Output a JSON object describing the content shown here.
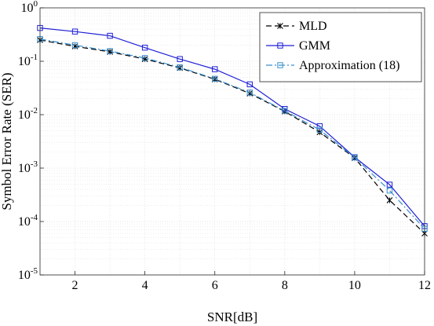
{
  "chart_data": {
    "type": "line",
    "xlabel": "SNR[dB]",
    "ylabel": "Symbol Error Rate (SER)",
    "xlim": [
      1,
      12
    ],
    "ylim": [
      1e-05,
      1
    ],
    "yscale": "log",
    "grid": true,
    "legend_position": "top-right",
    "x_ticks": [
      2,
      4,
      6,
      8,
      10,
      12
    ],
    "y_ticks": [
      {
        "base": "10",
        "exp": "0",
        "value": 1
      },
      {
        "base": "10",
        "exp": "-1",
        "value": 0.1
      },
      {
        "base": "10",
        "exp": "-2",
        "value": 0.01
      },
      {
        "base": "10",
        "exp": "-3",
        "value": 0.001
      },
      {
        "base": "10",
        "exp": "-4",
        "value": 0.0001
      },
      {
        "base": "10",
        "exp": "-5",
        "value": 1e-05
      }
    ],
    "x": [
      1,
      2,
      3,
      4,
      5,
      6,
      7,
      8,
      9,
      10,
      11,
      12
    ],
    "series": [
      {
        "name": "MLD",
        "color": "#000000",
        "line_style": "dashed",
        "marker": "asterisk",
        "values": [
          0.25,
          0.19,
          0.15,
          0.11,
          0.075,
          0.046,
          0.025,
          0.0115,
          0.0047,
          0.00155,
          0.00025,
          6e-05
        ]
      },
      {
        "name": "GMM",
        "color": "#1f1fd6",
        "line_style": "solid",
        "marker": "square",
        "values": [
          0.42,
          0.36,
          0.3,
          0.18,
          0.11,
          0.071,
          0.037,
          0.0128,
          0.0061,
          0.0016,
          0.00049,
          8.2e-05
        ]
      },
      {
        "name": "Approximation (18)",
        "color": "#3a8fce",
        "line_style": "dashdot",
        "marker": "square",
        "values": [
          0.26,
          0.2,
          0.155,
          0.115,
          0.077,
          0.047,
          0.026,
          0.0118,
          0.0052,
          0.00158,
          0.00038,
          7.3e-05
        ]
      }
    ]
  }
}
